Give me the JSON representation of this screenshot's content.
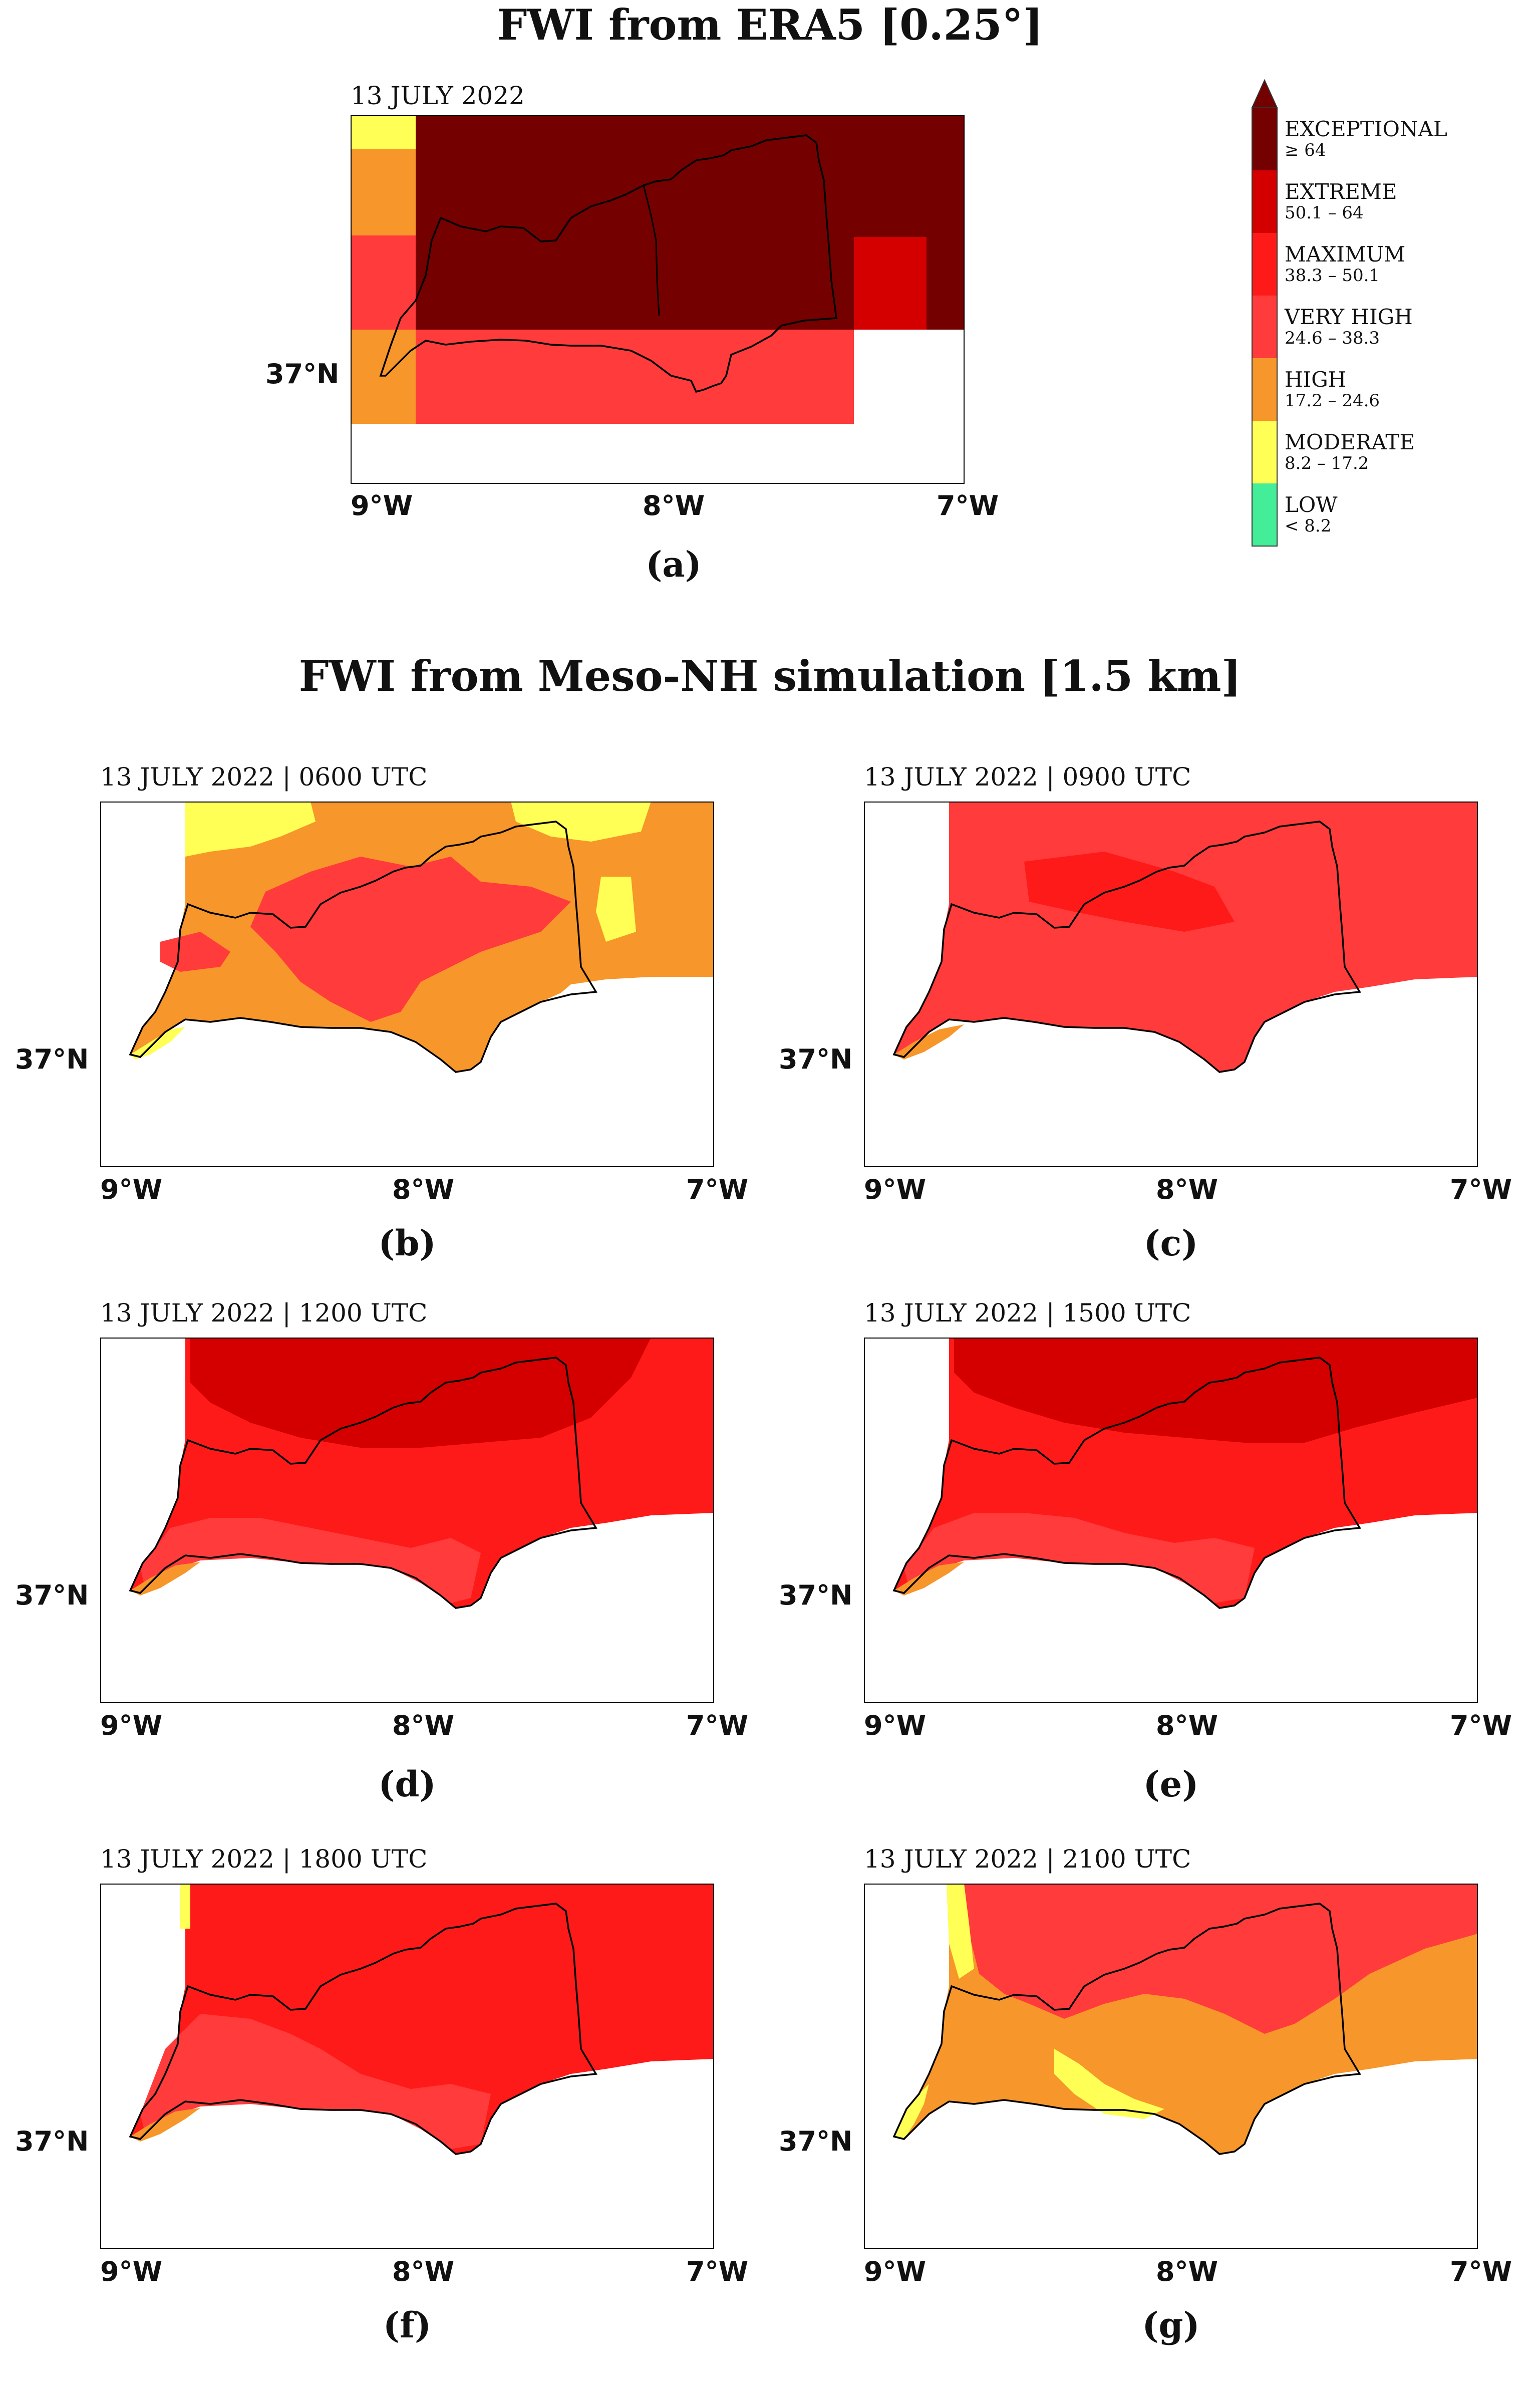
{
  "titles": {
    "era5": "FWI from ERA5 [0.25°]",
    "mesonh": "FWI from Meso-NH simulation [1.5 km]"
  },
  "axis": {
    "lon_ticks": [
      "9°W",
      "8°W",
      "7°W"
    ],
    "lat_tick": "37°N"
  },
  "colors": {
    "low": "#44ee99",
    "moderate": "#ffff55",
    "high": "#f7962a",
    "very_high": "#ff3b3b",
    "maximum": "#ff1a1a",
    "extreme": "#d40000",
    "exceptional": "#740000"
  },
  "legend": {
    "classes": [
      {
        "name": "EXCEPTIONAL",
        "range": "≥ 64",
        "color": "#740000"
      },
      {
        "name": "EXTREME",
        "range": "50.1 – 64",
        "color": "#d40000"
      },
      {
        "name": "MAXIMUM",
        "range": "38.3 – 50.1",
        "color": "#ff1a1a"
      },
      {
        "name": "VERY HIGH",
        "range": "24.6 – 38.3",
        "color": "#ff3b3b"
      },
      {
        "name": "HIGH",
        "range": "17.2 – 24.6",
        "color": "#f7962a"
      },
      {
        "name": "MODERATE",
        "range": "8.2 – 17.2",
        "color": "#ffff55"
      },
      {
        "name": "LOW",
        "range": "< 8.2",
        "color": "#44ee99"
      }
    ]
  },
  "panels": [
    {
      "id": "a",
      "label": "(a)",
      "title": "13 JULY 2022"
    },
    {
      "id": "b",
      "label": "(b)",
      "title": "13 JULY 2022 | 0600 UTC"
    },
    {
      "id": "c",
      "label": "(c)",
      "title": "13 JULY 2022 | 0900 UTC"
    },
    {
      "id": "d",
      "label": "(d)",
      "title": "13 JULY 2022 | 1200 UTC"
    },
    {
      "id": "e",
      "label": "(e)",
      "title": "13 JULY 2022 | 1500 UTC"
    },
    {
      "id": "f",
      "label": "(f)",
      "title": "13 JULY 2022 | 1800 UTC"
    },
    {
      "id": "g",
      "label": "(g)",
      "title": "13 JULY 2022 | 2100 UTC"
    }
  ]
}
